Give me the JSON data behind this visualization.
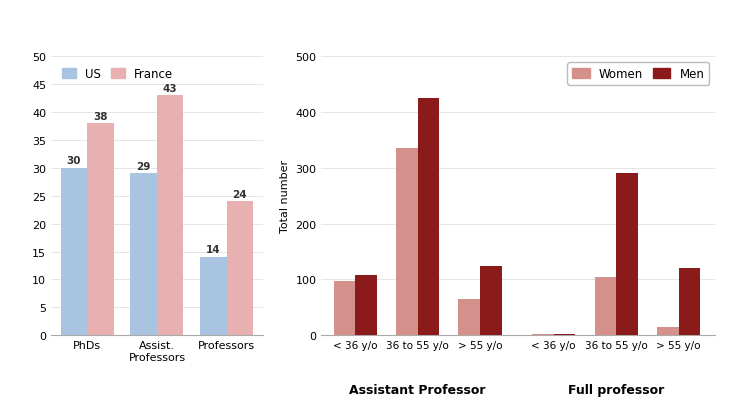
{
  "left": {
    "categories": [
      "PhDs",
      "Assist.\nProfessors",
      "Professors"
    ],
    "us_values": [
      30,
      29,
      14
    ],
    "france_values": [
      38,
      43,
      24
    ],
    "us_color": "#a8c4e0",
    "france_color": "#e8b0b0",
    "ylim": [
      0,
      50
    ],
    "yticks": [
      0,
      5,
      10,
      15,
      20,
      25,
      30,
      35,
      40,
      45,
      50
    ],
    "legend_labels": [
      "US",
      "France"
    ]
  },
  "right": {
    "age_groups": [
      "< 36 y/o",
      "36 to 55 y/o",
      "> 55 y/o"
    ],
    "sections": [
      "Assistant Professor",
      "Full professor"
    ],
    "women_color": "#d4908a",
    "men_color": "#8b1a1a",
    "ap_women": [
      98,
      335,
      65
    ],
    "ap_men": [
      108,
      425,
      125
    ],
    "fp_women": [
      2,
      105,
      15
    ],
    "fp_men": [
      2,
      290,
      120
    ],
    "ylim": [
      0,
      500
    ],
    "yticks": [
      0,
      100,
      200,
      300,
      400,
      500
    ],
    "ylabel": "Total number",
    "legend_labels": [
      "Women",
      "Men"
    ]
  },
  "background_color": "#ffffff"
}
